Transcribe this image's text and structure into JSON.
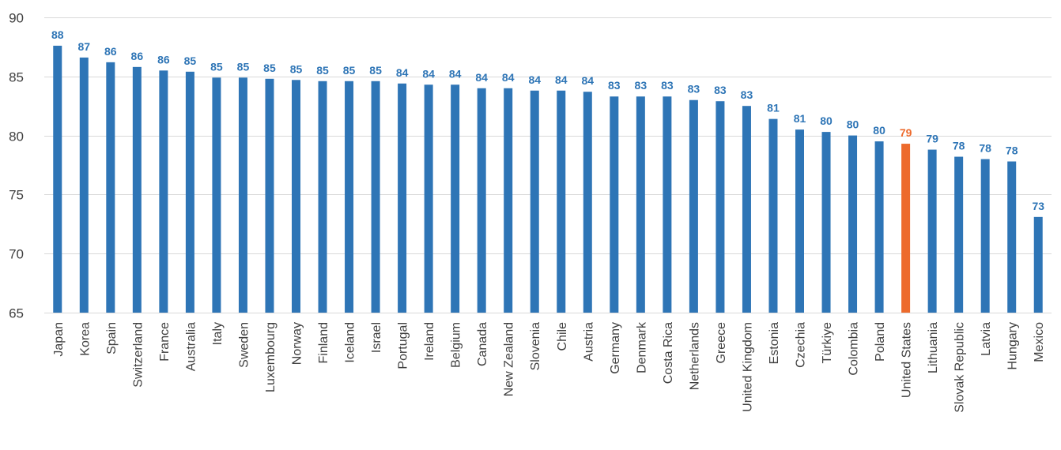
{
  "chart_data": {
    "type": "bar",
    "title": "",
    "xlabel": "",
    "ylabel": "",
    "ylim": [
      65,
      90
    ],
    "yticks": [
      65,
      70,
      75,
      80,
      85,
      90
    ],
    "grid": true,
    "colors": {
      "default": "#2e75b6",
      "highlight": "#ed6a2c"
    },
    "highlight": "United States",
    "categories": [
      "Japan",
      "Korea",
      "Spain",
      "Switzerland",
      "France",
      "Australia",
      "Italy",
      "Sweden",
      "Luxembourg",
      "Norway",
      "Finland",
      "Iceland",
      "Israel",
      "Portugal",
      "Ireland",
      "Belgium",
      "Canada",
      "New Zealand",
      "Slovenia",
      "Chile",
      "Austria",
      "Germany",
      "Denmark",
      "Costa Rica",
      "Netherlands",
      "Greece",
      "United Kingdom",
      "Estonia",
      "Czechia",
      "Türkiye",
      "Colombia",
      "Poland",
      "United States",
      "Lithuania",
      "Slovak Republic",
      "Latvia",
      "Hungary",
      "Mexico"
    ],
    "values": [
      87.6,
      86.6,
      86.2,
      85.8,
      85.5,
      85.4,
      84.9,
      84.9,
      84.8,
      84.7,
      84.6,
      84.6,
      84.6,
      84.4,
      84.3,
      84.3,
      84.0,
      84.0,
      83.8,
      83.8,
      83.7,
      83.3,
      83.3,
      83.3,
      83.0,
      82.9,
      82.5,
      81.4,
      80.5,
      80.3,
      80.0,
      79.5,
      79.3,
      78.8,
      78.2,
      78.0,
      77.8,
      73.1
    ],
    "labels": [
      "88",
      "87",
      "86",
      "86",
      "86",
      "85",
      "85",
      "85",
      "85",
      "85",
      "85",
      "85",
      "85",
      "84",
      "84",
      "84",
      "84",
      "84",
      "84",
      "84",
      "84",
      "83",
      "83",
      "83",
      "83",
      "83",
      "83",
      "81",
      "81",
      "80",
      "80",
      "80",
      "79",
      "79",
      "78",
      "78",
      "78",
      "73"
    ]
  }
}
